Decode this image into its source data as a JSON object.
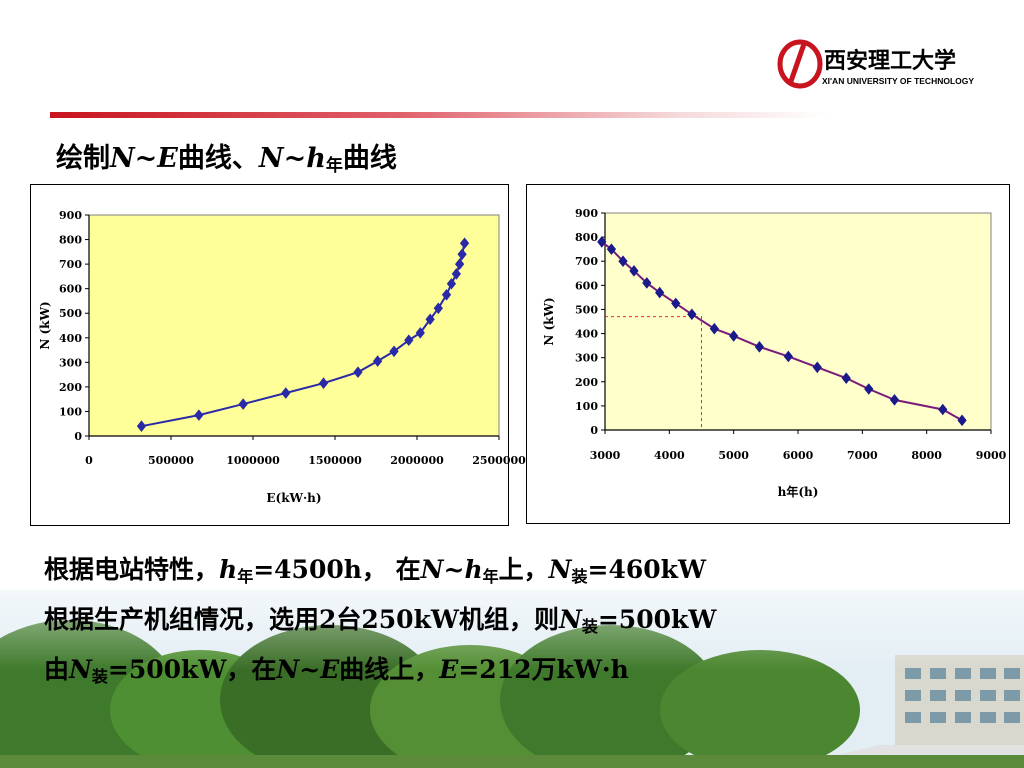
{
  "logo": {
    "name": "西安理工大学",
    "subtitle": "XI'AN UNIVERSITY OF TECHNOLOGY"
  },
  "title": {
    "t1": "绘制",
    "t2": "N~E",
    "t3": "曲线、",
    "t4": "N~h",
    "t5": "年",
    "t6": "曲线"
  },
  "chart_data": [
    {
      "type": "line",
      "xlabel": "E(kW·h)",
      "ylabel": "N (kW)",
      "xlim": [
        0,
        2500000
      ],
      "ylim": [
        0,
        900
      ],
      "xticks": [
        "0",
        "500000",
        "1000000",
        "1500000",
        "2000000",
        "2500000"
      ],
      "yticks": [
        "0",
        "100",
        "200",
        "300",
        "400",
        "500",
        "600",
        "700",
        "800",
        "900"
      ],
      "x": [
        320000,
        670000,
        940000,
        1200000,
        1430000,
        1640000,
        1760000,
        1860000,
        1950000,
        2020000,
        2080000,
        2130000,
        2180000,
        2210000,
        2240000,
        2260000,
        2275000,
        2290000
      ],
      "y": [
        40,
        85,
        130,
        175,
        215,
        260,
        305,
        345,
        390,
        420,
        475,
        520,
        575,
        620,
        660,
        700,
        740,
        785
      ],
      "color": "#2a2aa8",
      "plot_bg": "#ffff99"
    },
    {
      "type": "line",
      "xlabel": "h年(h)",
      "ylabel": "N (kW)",
      "xlim": [
        3000,
        9000
      ],
      "ylim": [
        0,
        900
      ],
      "xticks": [
        "3000",
        "4000",
        "5000",
        "6000",
        "7000",
        "8000",
        "9000"
      ],
      "yticks": [
        "0",
        "100",
        "200",
        "300",
        "400",
        "500",
        "600",
        "700",
        "800",
        "900"
      ],
      "x": [
        2950,
        3100,
        3280,
        3450,
        3650,
        3850,
        4100,
        4350,
        4700,
        5000,
        5400,
        5850,
        6300,
        6750,
        7100,
        7500,
        8250,
        8550
      ],
      "y": [
        780,
        750,
        700,
        660,
        610,
        570,
        525,
        480,
        420,
        390,
        345,
        305,
        260,
        215,
        170,
        125,
        85,
        40
      ],
      "color": "#7a1a7a",
      "marker_color": "#1a1a8a",
      "reference": {
        "x": 4500,
        "y": 470,
        "color": "#e03030"
      },
      "plot_bg": "#ffffcc"
    }
  ],
  "body": {
    "line1": {
      "a": "根据电站特性，",
      "b": "h",
      "c": "年",
      "d": "=4500h， 在",
      "e": "N~h",
      "f": "年",
      "g": "上，",
      "h": "N",
      "i": "装",
      "j": "=460kW"
    },
    "line2": {
      "a": "根据生产机组情况，选用2台250kW机组，则",
      "b": "N",
      "c": "装",
      "d": "=500kW"
    },
    "line3": {
      "a": "由",
      "b": "N",
      "c": "装",
      "d": "=500kW，在",
      "e": "N~E",
      "f": "曲线上，",
      "g": "E",
      "h": "=212万kW·h"
    }
  }
}
